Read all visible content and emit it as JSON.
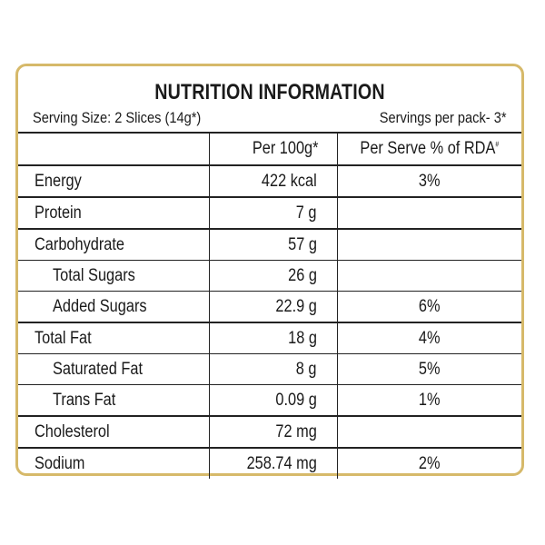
{
  "title": "NUTRITION INFORMATION",
  "serving_size": "Serving Size: 2 Slices (14g*)",
  "servings_per_pack": "Servings per pack- 3*",
  "columns": {
    "nutrient": "",
    "per_100g": "Per 100g*",
    "per_serve": "Per Serve % of RDA",
    "per_serve_sup": "#"
  },
  "rows": [
    {
      "nutrient": "Energy",
      "per_100g": "422 kcal",
      "rda": "3%"
    },
    {
      "nutrient": "Protein",
      "per_100g": "7 g",
      "rda": ""
    },
    {
      "nutrient": "Carbohydrate",
      "per_100g": "57 g",
      "rda": ""
    },
    {
      "nutrient": "Total Sugars",
      "per_100g": "26 g",
      "rda": ""
    },
    {
      "nutrient": "Added Sugars",
      "per_100g": "22.9 g",
      "rda": "6%"
    },
    {
      "nutrient": "Total Fat",
      "per_100g": "18 g",
      "rda": "4%"
    },
    {
      "nutrient": "Saturated Fat",
      "per_100g": "8 g",
      "rda": "5%"
    },
    {
      "nutrient": "Trans Fat",
      "per_100g": "0.09 g",
      "rda": "1%"
    },
    {
      "nutrient": "Cholesterol",
      "per_100g": "72 mg",
      "rda": ""
    },
    {
      "nutrient": "Sodium",
      "per_100g": "258.74 mg",
      "rda": "2%"
    }
  ],
  "colors": {
    "border": "#d6b96a",
    "text": "#1a1a1a"
  }
}
